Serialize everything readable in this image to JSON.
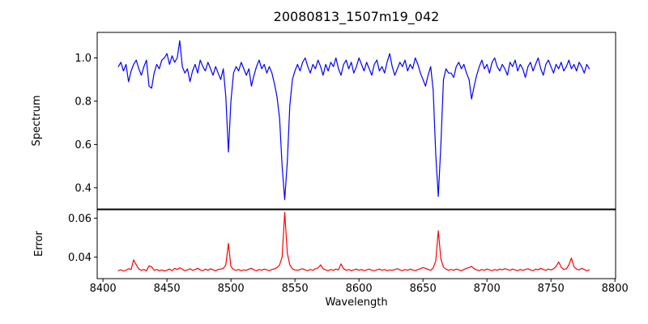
{
  "chart_data": {
    "type": "line",
    "title": "20080813_1507m19_042",
    "xlabel": "Wavelength",
    "grid": false,
    "legend": null,
    "x_start": 8412,
    "x_step": 2,
    "xlim": [
      8395.5,
      8800.5
    ],
    "xticks": [
      {
        "v": 8400,
        "label": "8400"
      },
      {
        "v": 8450,
        "label": "8450"
      },
      {
        "v": 8500,
        "label": "8500"
      },
      {
        "v": 8550,
        "label": "8550"
      },
      {
        "v": 8600,
        "label": "8600"
      },
      {
        "v": 8650,
        "label": "8650"
      },
      {
        "v": 8700,
        "label": "8700"
      },
      {
        "v": 8750,
        "label": "8750"
      },
      {
        "v": 8800,
        "label": "8800"
      }
    ],
    "panels": [
      {
        "name": "spectrum",
        "ylabel": "Spectrum",
        "color": "#0000ff",
        "ylim": [
          0.302,
          1.118
        ],
        "yticks": [
          {
            "v": 1.0,
            "label": "1.0"
          },
          {
            "v": 0.8,
            "label": "0.8"
          },
          {
            "v": 0.6,
            "label": "0.6"
          },
          {
            "v": 0.4,
            "label": "0.4"
          }
        ],
        "features_note": "absorption lines near 8437, 8468, 8498 (min 0.565), 8516, 8542 (min 0.345), 8652, 8662 (min 0.36), 8688",
        "values": [
          0.96,
          0.98,
          0.94,
          0.97,
          0.89,
          0.94,
          0.97,
          0.99,
          0.95,
          0.92,
          0.96,
          0.99,
          0.87,
          0.86,
          0.93,
          0.97,
          0.95,
          0.99,
          1.0,
          1.02,
          0.97,
          1.01,
          0.98,
          1.0,
          1.08,
          0.96,
          0.93,
          0.95,
          0.89,
          0.94,
          0.97,
          0.93,
          0.99,
          0.96,
          0.94,
          0.98,
          0.95,
          0.92,
          0.96,
          0.93,
          0.9,
          0.95,
          0.82,
          0.565,
          0.8,
          0.93,
          0.96,
          0.94,
          0.98,
          0.95,
          0.92,
          0.95,
          0.87,
          0.92,
          0.96,
          0.99,
          0.95,
          0.97,
          0.93,
          0.96,
          0.93,
          0.88,
          0.82,
          0.72,
          0.5,
          0.345,
          0.52,
          0.78,
          0.9,
          0.94,
          0.97,
          0.94,
          0.98,
          1.0,
          0.96,
          0.93,
          0.97,
          0.95,
          0.99,
          0.96,
          0.92,
          0.97,
          0.94,
          0.98,
          0.96,
          1.0,
          0.95,
          0.92,
          0.97,
          0.99,
          0.95,
          0.98,
          0.93,
          0.96,
          1.0,
          0.97,
          0.94,
          0.98,
          0.95,
          0.92,
          0.97,
          0.99,
          0.94,
          0.96,
          0.93,
          0.98,
          1.02,
          0.96,
          0.92,
          0.95,
          0.98,
          0.96,
          0.99,
          0.94,
          0.97,
          0.95,
          1.0,
          0.97,
          0.93,
          0.9,
          0.87,
          0.92,
          0.96,
          0.85,
          0.55,
          0.36,
          0.6,
          0.9,
          0.95,
          0.93,
          0.93,
          0.91,
          0.96,
          0.98,
          0.95,
          0.97,
          0.93,
          0.9,
          0.81,
          0.87,
          0.92,
          0.96,
          0.99,
          0.95,
          0.97,
          0.93,
          0.98,
          1.0,
          0.96,
          0.94,
          0.97,
          0.95,
          0.92,
          0.98,
          0.96,
          0.99,
          0.94,
          0.97,
          0.95,
          0.91,
          0.96,
          0.98,
          0.94,
          0.97,
          1.0,
          0.95,
          0.92,
          0.97,
          0.99,
          0.96,
          0.93,
          0.97,
          0.95,
          0.98,
          0.94,
          0.96,
          0.99,
          0.95,
          0.97,
          0.94,
          0.98,
          0.96,
          0.93,
          0.97,
          0.95
        ]
      },
      {
        "name": "error",
        "ylabel": "Error",
        "color": "#ff0000",
        "ylim": [
          0.0289,
          0.0643
        ],
        "yticks": [
          {
            "v": 0.06,
            "label": "0.06"
          },
          {
            "v": 0.04,
            "label": "0.04"
          }
        ],
        "features_note": "baseline ~0.0335 with peaks at 8424 (0.0385), 8498 (0.047), 8542 (0.063), 8662 (0.0535), 8756, 8766",
        "values": [
          0.033,
          0.0335,
          0.0328,
          0.0332,
          0.034,
          0.0336,
          0.0385,
          0.036,
          0.0338,
          0.0332,
          0.0336,
          0.033,
          0.0355,
          0.035,
          0.0332,
          0.0336,
          0.033,
          0.0334,
          0.0328,
          0.0332,
          0.0338,
          0.033,
          0.0342,
          0.0336,
          0.0345,
          0.0338,
          0.033,
          0.0334,
          0.034,
          0.0332,
          0.0336,
          0.0342,
          0.0334,
          0.033,
          0.0338,
          0.0332,
          0.034,
          0.0334,
          0.033,
          0.0336,
          0.0338,
          0.0342,
          0.036,
          0.047,
          0.0352,
          0.0336,
          0.0332,
          0.0336,
          0.033,
          0.0334,
          0.0332,
          0.0338,
          0.0342,
          0.0334,
          0.033,
          0.0336,
          0.0332,
          0.0338,
          0.0334,
          0.033,
          0.0336,
          0.034,
          0.0346,
          0.036,
          0.04,
          0.063,
          0.042,
          0.036,
          0.034,
          0.0334,
          0.0332,
          0.0336,
          0.034,
          0.0334,
          0.033,
          0.0336,
          0.0332,
          0.034,
          0.0344,
          0.036,
          0.034,
          0.0334,
          0.033,
          0.0336,
          0.0332,
          0.0338,
          0.0334,
          0.0365,
          0.034,
          0.0332,
          0.0336,
          0.033,
          0.0334,
          0.0338,
          0.0332,
          0.0336,
          0.033,
          0.0334,
          0.0338,
          0.0332,
          0.033,
          0.0334,
          0.0338,
          0.0332,
          0.0336,
          0.033,
          0.0334,
          0.0332,
          0.0336,
          0.034,
          0.0334,
          0.033,
          0.0336,
          0.0332,
          0.0338,
          0.0334,
          0.033,
          0.0336,
          0.034,
          0.0346,
          0.0342,
          0.0336,
          0.0332,
          0.0344,
          0.038,
          0.0535,
          0.039,
          0.0348,
          0.0338,
          0.0332,
          0.0336,
          0.0332,
          0.0338,
          0.0334,
          0.033,
          0.0336,
          0.0342,
          0.0346,
          0.0352,
          0.034,
          0.0334,
          0.033,
          0.0336,
          0.0332,
          0.0338,
          0.0334,
          0.033,
          0.0336,
          0.0332,
          0.0338,
          0.0334,
          0.034,
          0.0336,
          0.0332,
          0.0338,
          0.0334,
          0.033,
          0.0336,
          0.0332,
          0.0336,
          0.034,
          0.0334,
          0.033,
          0.0338,
          0.0334,
          0.0342,
          0.0336,
          0.0332,
          0.0338,
          0.0334,
          0.034,
          0.0352,
          0.0375,
          0.0348,
          0.0336,
          0.034,
          0.036,
          0.0395,
          0.035,
          0.0338,
          0.0334,
          0.0342,
          0.0336,
          0.033,
          0.0334
        ]
      }
    ]
  }
}
